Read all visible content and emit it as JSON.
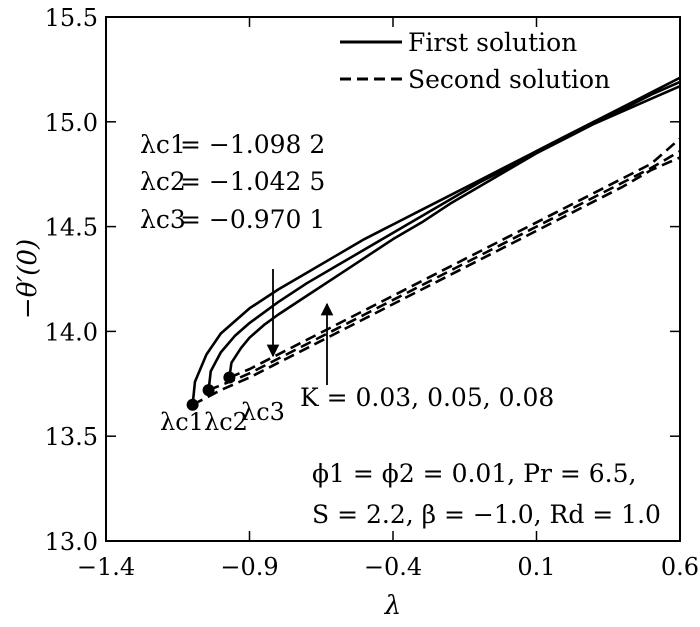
{
  "chart_data": {
    "type": "line",
    "xlabel": "λ",
    "ylabel": "−θ′(0)",
    "xlim": [
      -1.4,
      0.6
    ],
    "ylim": [
      13.0,
      15.5
    ],
    "xticks": [
      -1.4,
      -0.9,
      -0.4,
      0.1,
      0.6
    ],
    "yticks": [
      13.0,
      13.5,
      14.0,
      14.5,
      15.0,
      15.5
    ],
    "xtick_labels": [
      "−1.4",
      "−0.9",
      "−0.4",
      "0.1",
      "0.6"
    ],
    "ytick_labels": [
      "13.0",
      "13.5",
      "14.0",
      "14.5",
      "15.0",
      "15.5"
    ],
    "grid": false,
    "legend_position": "top-right",
    "legend": [
      {
        "label": "First solution",
        "style": "solid"
      },
      {
        "label": "Second solution",
        "style": "dashed"
      }
    ],
    "critical_points": [
      {
        "label": "λc1",
        "x": -1.0982,
        "y": 13.65
      },
      {
        "label": "λc2",
        "x": -1.0425,
        "y": 13.72
      },
      {
        "label": "λc3",
        "x": -0.9701,
        "y": 13.78
      }
    ],
    "series": [
      {
        "solution": "first",
        "x": [
          -1.0982,
          -1.09,
          -1.05,
          -1.0,
          -0.9,
          -0.8,
          -0.7,
          -0.6,
          -0.5,
          -0.4,
          -0.3,
          -0.2,
          -0.1,
          0.0,
          0.1,
          0.2,
          0.3,
          0.4,
          0.5,
          0.6
        ],
        "y": [
          13.65,
          13.76,
          13.89,
          13.99,
          14.11,
          14.2,
          14.28,
          14.36,
          14.44,
          14.51,
          14.58,
          14.65,
          14.72,
          14.79,
          14.86,
          14.93,
          15.0,
          15.07,
          15.14,
          15.21
        ]
      },
      {
        "solution": "first",
        "x": [
          -1.0425,
          -1.035,
          -1.0,
          -0.95,
          -0.9,
          -0.8,
          -0.7,
          -0.6,
          -0.5,
          -0.4,
          -0.3,
          -0.2,
          -0.1,
          0.0,
          0.1,
          0.2,
          0.3,
          0.4,
          0.5,
          0.6
        ],
        "y": [
          13.72,
          13.81,
          13.9,
          13.98,
          14.04,
          14.14,
          14.23,
          14.31,
          14.39,
          14.47,
          14.55,
          14.63,
          14.71,
          14.78,
          14.86,
          14.93,
          15.0,
          15.06,
          15.13,
          15.19
        ]
      },
      {
        "solution": "first",
        "x": [
          -0.9701,
          -0.963,
          -0.93,
          -0.9,
          -0.85,
          -0.8,
          -0.7,
          -0.6,
          -0.5,
          -0.4,
          -0.3,
          -0.2,
          -0.1,
          0.0,
          0.1,
          0.2,
          0.3,
          0.4,
          0.5,
          0.6
        ],
        "y": [
          13.78,
          13.85,
          13.92,
          13.97,
          14.03,
          14.08,
          14.17,
          14.26,
          14.35,
          14.44,
          14.52,
          14.61,
          14.69,
          14.77,
          14.85,
          14.92,
          14.99,
          15.05,
          15.11,
          15.17
        ]
      },
      {
        "solution": "second",
        "x": [
          -1.0982,
          -1.0,
          -0.9,
          -0.8,
          -0.7,
          -0.6,
          -0.5,
          -0.4,
          -0.3,
          -0.2,
          -0.1,
          0.0,
          0.1,
          0.2,
          0.3,
          0.4,
          0.5,
          0.6
        ],
        "y": [
          13.65,
          13.72,
          13.78,
          13.85,
          13.92,
          13.99,
          14.06,
          14.13,
          14.2,
          14.27,
          14.34,
          14.41,
          14.48,
          14.55,
          14.62,
          14.69,
          14.77,
          14.83
        ]
      },
      {
        "solution": "second",
        "x": [
          -1.0425,
          -0.95,
          -0.9,
          -0.8,
          -0.7,
          -0.6,
          -0.5,
          -0.4,
          -0.3,
          -0.2,
          -0.1,
          0.0,
          0.1,
          0.2,
          0.3,
          0.4,
          0.5,
          0.6
        ],
        "y": [
          13.72,
          13.77,
          13.8,
          13.87,
          13.94,
          14.01,
          14.08,
          14.15,
          14.22,
          14.29,
          14.36,
          14.43,
          14.5,
          14.57,
          14.64,
          14.71,
          14.78,
          14.86
        ]
      },
      {
        "solution": "second",
        "x": [
          -0.9701,
          -0.9,
          -0.8,
          -0.7,
          -0.6,
          -0.5,
          -0.4,
          -0.3,
          -0.2,
          -0.1,
          0.0,
          0.1,
          0.2,
          0.3,
          0.4,
          0.5,
          0.6
        ],
        "y": [
          13.78,
          13.82,
          13.89,
          13.96,
          14.03,
          14.1,
          14.17,
          14.24,
          14.31,
          14.38,
          14.45,
          14.52,
          14.59,
          14.66,
          14.73,
          14.8,
          14.92
        ]
      }
    ],
    "annotations": {
      "critical_values": [
        {
          "name": "λc1",
          "value": "−1.098 2"
        },
        {
          "name": "λc2",
          "value": "−1.042 5"
        },
        {
          "name": "λc3",
          "value": "−0.970 1"
        }
      ],
      "k_label": "K = 0.03, 0.05, 0.08",
      "params_line1": "ϕ1 = ϕ2 = 0.01, Pr = 6.5,",
      "params_line2": "S = 2.2, β = −1.0, Rd = 1.0"
    }
  }
}
